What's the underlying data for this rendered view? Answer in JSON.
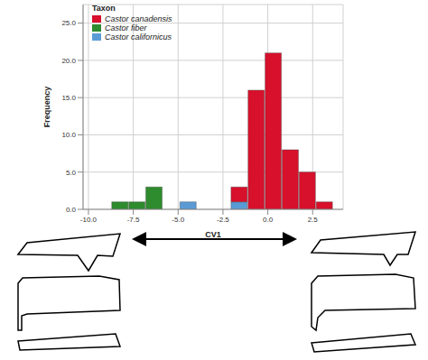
{
  "chart_data": {
    "type": "histogram",
    "x_label": "CV1",
    "y_label": "Frequency",
    "legend_title": "Taxon",
    "legend": "top-left",
    "grid": true,
    "stacked": true,
    "bins": [
      -8.7,
      -7.75,
      -6.8,
      -5.85,
      -4.9,
      -3.95,
      -3.0,
      -2.05,
      -1.1,
      -0.15,
      0.8,
      1.75,
      2.7,
      3.65
    ],
    "series": [
      {
        "name": "Castor canadensis",
        "color": "#d7102b",
        "values": [
          0,
          0,
          0,
          0,
          0,
          0,
          0,
          2,
          16,
          21,
          8,
          5,
          1
        ]
      },
      {
        "name": "Castor fiber",
        "color": "#2e8b2e",
        "values": [
          1,
          1,
          3,
          0,
          0,
          0,
          0,
          0,
          0,
          0,
          0,
          0,
          0
        ]
      },
      {
        "name": "Castor californicus",
        "color": "#5b9bd5",
        "values": [
          0,
          0,
          0,
          0,
          1,
          0,
          0,
          1,
          0,
          0,
          0,
          0,
          0
        ]
      }
    ],
    "xlim": [
      -10.3,
      4.2
    ],
    "xticks": [
      {
        "value": -10,
        "label": "-10.0"
      },
      {
        "value": -7.5,
        "label": "-7.5"
      },
      {
        "value": -5,
        "label": "-5.0"
      },
      {
        "value": -2.5,
        "label": "-2.5"
      },
      {
        "value": 0,
        "label": "0.0"
      },
      {
        "value": 2.5,
        "label": "2.5"
      }
    ],
    "ylim": [
      0,
      27.5
    ],
    "yticks": [
      {
        "value": 0,
        "label": "0.0"
      },
      {
        "value": 5,
        "label": "5.0"
      },
      {
        "value": 10,
        "label": "10.0"
      },
      {
        "value": 15,
        "label": "15.0"
      },
      {
        "value": 20,
        "label": "20.0"
      },
      {
        "value": 25,
        "label": "25.0"
      }
    ]
  }
}
